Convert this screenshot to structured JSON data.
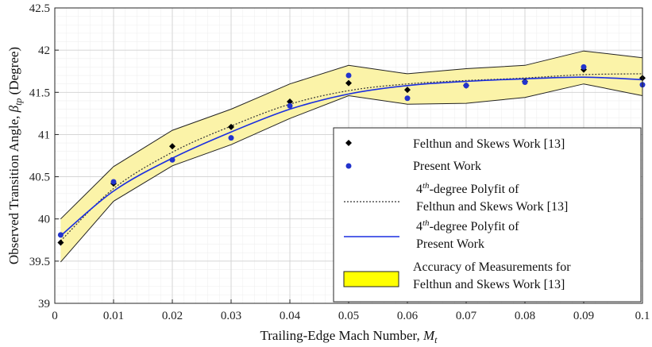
{
  "chart_data": {
    "type": "scatter",
    "xlabel": "Trailing-Edge Mach Number, ",
    "xlabel_var": "M",
    "xlabel_sub": "t",
    "ylabel": "Observed Transition Angle, ",
    "ylabel_var": "β",
    "ylabel_sub": "tp",
    "ylabel_suffix": " (Degree)",
    "xlim": [
      0,
      0.1
    ],
    "ylim": [
      39,
      42.5
    ],
    "x_ticks": [
      "0",
      "0.01",
      "0.02",
      "0.03",
      "0.04",
      "0.05",
      "0.06",
      "0.07",
      "0.08",
      "0.09",
      "0.1"
    ],
    "x_tick_values": [
      0,
      0.01,
      0.02,
      0.03,
      0.04,
      0.05,
      0.06,
      0.07,
      0.08,
      0.09,
      0.1
    ],
    "y_ticks": [
      "39",
      "39.5",
      "40",
      "40.5",
      "41",
      "41.5",
      "42",
      "42.5"
    ],
    "y_tick_values": [
      39,
      39.5,
      40,
      40.5,
      41,
      41.5,
      42,
      42.5
    ],
    "grid": true,
    "legend_position": "bottom-right",
    "series": [
      {
        "name": "Felthun and Skews Work [13]",
        "kind": "scatter",
        "marker": "diamond",
        "color": "#000000",
        "x": [
          0.001,
          0.01,
          0.02,
          0.03,
          0.04,
          0.05,
          0.06,
          0.07,
          0.08,
          0.09,
          0.1
        ],
        "y": [
          39.72,
          40.42,
          40.86,
          41.09,
          41.39,
          41.61,
          41.53,
          41.58,
          41.63,
          41.77,
          41.67
        ]
      },
      {
        "name": "Present Work",
        "kind": "scatter",
        "marker": "circle",
        "color": "#2233cc",
        "x": [
          0.001,
          0.01,
          0.02,
          0.03,
          0.04,
          0.05,
          0.06,
          0.07,
          0.08,
          0.09,
          0.1
        ],
        "y": [
          39.81,
          40.44,
          40.7,
          40.96,
          41.34,
          41.7,
          41.43,
          41.58,
          41.62,
          41.8,
          41.59
        ]
      },
      {
        "name_parts": [
          "4",
          "th",
          "-degree Polyfit of",
          "Felthun and Skews Work [13]"
        ],
        "kind": "line",
        "style": "dotted",
        "color": "#333333",
        "x": [
          0.001,
          0.01,
          0.02,
          0.03,
          0.04,
          0.05,
          0.06,
          0.07,
          0.08,
          0.09,
          0.1
        ],
        "y": [
          39.74,
          40.36,
          40.79,
          41.1,
          41.36,
          41.52,
          41.6,
          41.64,
          41.67,
          41.71,
          41.72
        ]
      },
      {
        "name_parts": [
          "4",
          "th",
          "-degree Polyfit of",
          "Present Work"
        ],
        "kind": "line",
        "style": "solid",
        "color": "#1a2ee0",
        "x": [
          0.001,
          0.01,
          0.02,
          0.03,
          0.04,
          0.05,
          0.06,
          0.07,
          0.08,
          0.09,
          0.1
        ],
        "y": [
          39.8,
          40.33,
          40.72,
          41.03,
          41.3,
          41.48,
          41.58,
          41.63,
          41.66,
          41.68,
          41.65
        ]
      }
    ],
    "band": {
      "name_lines": [
        "Accuracy of Measurements for",
        "Felthun and Skews Work [13]"
      ],
      "fill": "#fbf3a8",
      "edge": "#222222",
      "x": [
        0.001,
        0.01,
        0.02,
        0.03,
        0.04,
        0.05,
        0.06,
        0.07,
        0.08,
        0.09,
        0.1
      ],
      "upper": [
        40.0,
        40.62,
        41.05,
        41.3,
        41.6,
        41.82,
        41.72,
        41.78,
        41.82,
        41.99,
        41.91
      ],
      "lower": [
        39.49,
        40.21,
        40.63,
        40.88,
        41.19,
        41.46,
        41.36,
        41.37,
        41.44,
        41.6,
        41.46
      ]
    }
  }
}
